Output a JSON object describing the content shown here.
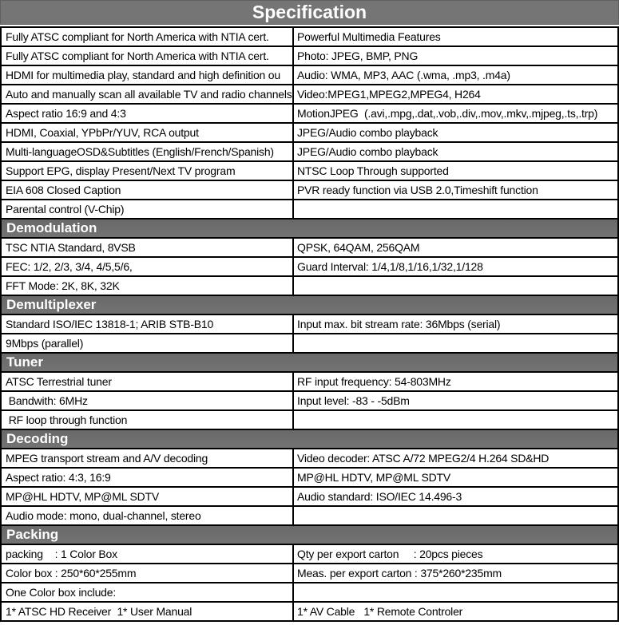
{
  "title": "Specification",
  "colors": {
    "title_bar_bg": "#757575",
    "section_bar_bg": "#6f6f6f",
    "border": "#000000",
    "header_text": "#ffffff",
    "body_text": "#000000",
    "row_bg": "#ffffff"
  },
  "sections": [
    {
      "header": "",
      "rows": [
        {
          "left": "Fully ATSC compliant for North America with NTIA cert.",
          "right": "Powerful Multimedia Features"
        },
        {
          "left": "Fully ATSC compliant for North America with NTIA cert.",
          "right": "Photo: JPEG, BMP, PNG"
        },
        {
          "left": "HDMI for multimedia play, standard and high definition ou",
          "right": "Audio: WMA, MP3, AAC (.wma, .mp3, .m4a)"
        },
        {
          "left": "Auto and manually scan all available TV and radio channels",
          "right": "Video:MPEG1,MPEG2,MPEG4, H264"
        },
        {
          "left": "Aspect ratio 16:9 and 4:3",
          "right": "MotionJPEG  (.avi,.mpg,.dat,.vob,.div,.mov,.mkv,.mjpeg,.ts,.trp)"
        },
        {
          "left": "HDMI, Coaxial, YPbPr/YUV, RCA output",
          "right": "JPEG/Audio combo playback"
        },
        {
          "left": "Multi-languageOSD&Subtitles (English/French/Spanish)",
          "right": "JPEG/Audio combo playback"
        },
        {
          "left": "Support EPG, display Present/Next TV program",
          "right": "NTSC Loop Through supported"
        },
        {
          "left": "EIA 608 Closed Caption",
          "right": "PVR ready function via USB 2.0,Timeshift function"
        },
        {
          "left": "Parental control (V-Chip)",
          "right": ""
        }
      ]
    },
    {
      "header": "Demodulation",
      "rows": [
        {
          "left": "TSC NTIA Standard, 8VSB",
          "right": "QPSK, 64QAM, 256QAM"
        },
        {
          "left": "FEC: 1/2, 2/3, 3/4, 4/5,5/6,",
          "right": "Guard Interval: 1/4,1/8,1/16,1/32,1/128"
        },
        {
          "left": "FFT Mode: 2K, 8K, 32K",
          "right": ""
        }
      ]
    },
    {
      "header": "Demultiplexer",
      "rows": [
        {
          "left": "Standard ISO/IEC 13818-1; ARIB STB-B10",
          "right": "Input max. bit stream rate: 36Mbps (serial)"
        },
        {
          "left": "9Mbps (parallel)",
          "right": ""
        }
      ]
    },
    {
      "header": "Tuner",
      "rows": [
        {
          "left": "ATSC Terrestrial tuner",
          "right": "RF input frequency: 54-803MHz"
        },
        {
          "left": " Bandwith: 6MHz",
          "right": "Input level: -83 - -5dBm"
        },
        {
          "left": " RF loop through function",
          "right": ""
        }
      ]
    },
    {
      "header": "Decoding",
      "rows": [
        {
          "left": "MPEG transport stream and A/V decoding",
          "right": "Video decoder: ATSC A/72 MPEG2/4 H.264 SD&HD"
        },
        {
          "left": "Aspect ratio: 4:3, 16:9",
          "right": "MP@HL HDTV, MP@ML SDTV"
        },
        {
          "left": "MP@HL HDTV, MP@ML SDTV",
          "right": "Audio standard: ISO/IEC 14.496-3"
        },
        {
          "left": "Audio mode: mono, dual-channel, stereo",
          "right": ""
        }
      ]
    },
    {
      "header": "Packing",
      "rows": [
        {
          "left": "packing    : 1 Color Box",
          "right": "Qty per export carton     : 20pcs pieces"
        },
        {
          "left": "Color box : 250*60*255mm",
          "right": "Meas. per export carton : 375*260*235mm"
        },
        {
          "left": "One Color box include:",
          "right": ""
        },
        {
          "left": "1* ATSC HD Receiver  1* User Manual",
          "right": "1* AV Cable   1* Remote Controler"
        }
      ]
    }
  ]
}
